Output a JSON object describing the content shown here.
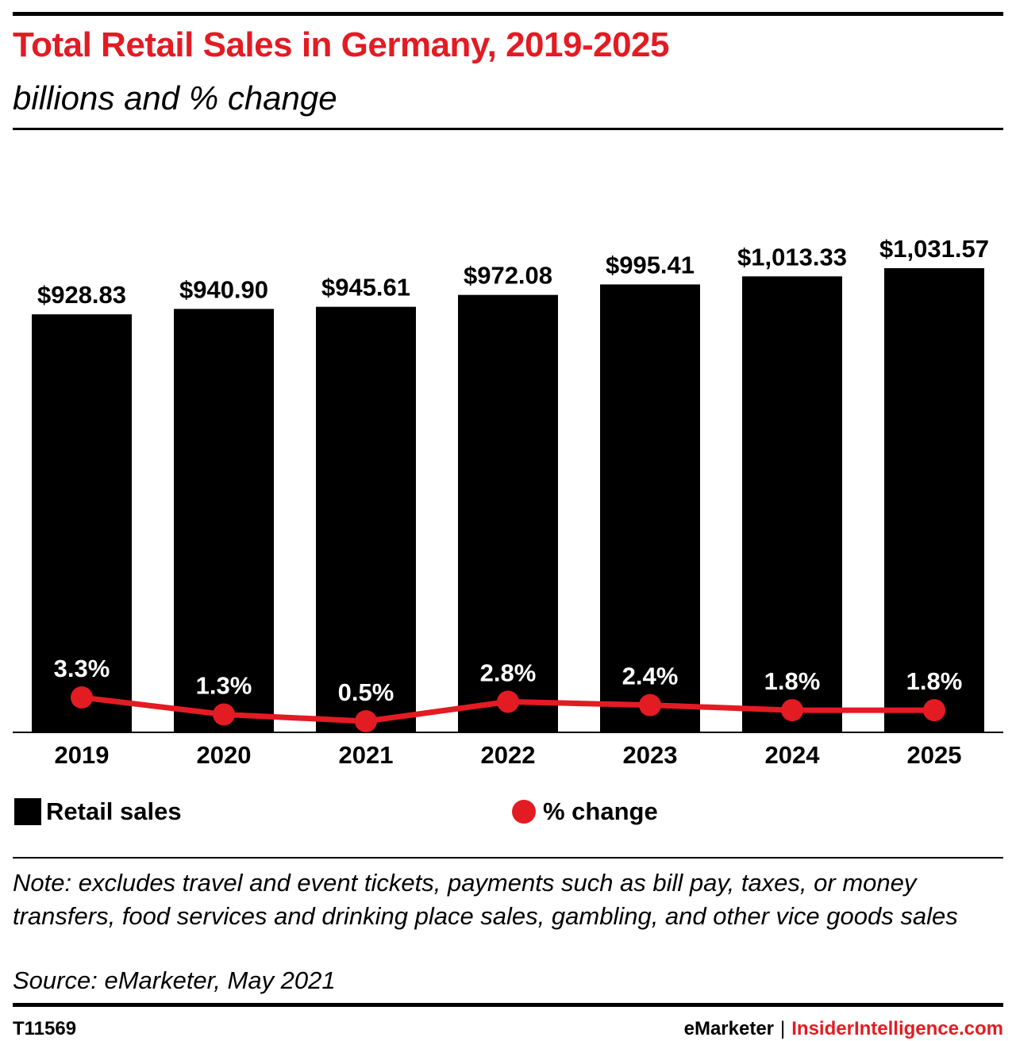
{
  "header": {
    "title": "Total Retail Sales in Germany, 2019-2025",
    "subtitle": "billions and % change"
  },
  "legend": {
    "bars_label": "Retail sales",
    "line_label": "% change"
  },
  "note": "Note: excludes travel and event tickets, payments such as bill pay, taxes, or money transfers, food services and drinking place sales, gambling, and other vice goods sales",
  "source": "Source: eMarketer, May 2021",
  "footer": {
    "chart_id": "T11569",
    "brand_primary": "eMarketer",
    "separator": "|",
    "brand_secondary": "InsiderIntelligence.com"
  },
  "colors": {
    "bar": "#000000",
    "line": "#e31b23",
    "title": "#e31b23"
  },
  "chart_data": {
    "type": "bar",
    "categories": [
      "2019",
      "2020",
      "2021",
      "2022",
      "2023",
      "2024",
      "2025"
    ],
    "series": [
      {
        "name": "Retail sales",
        "type": "bar",
        "values": [
          928.83,
          940.9,
          945.61,
          972.08,
          995.41,
          1013.33,
          1031.57
        ],
        "labels": [
          "$928.83",
          "$940.90",
          "$945.61",
          "$972.08",
          "$995.41",
          "$1,013.33",
          "$1,031.57"
        ]
      },
      {
        "name": "% change",
        "type": "line",
        "values": [
          3.3,
          1.3,
          0.5,
          2.8,
          2.4,
          1.8,
          1.8
        ],
        "labels": [
          "3.3%",
          "1.3%",
          "0.5%",
          "2.8%",
          "2.4%",
          "1.8%",
          "1.8%"
        ]
      }
    ],
    "title": "Total Retail Sales in Germany, 2019-2025",
    "subtitle": "billions and % change",
    "grid": false,
    "legend_position": "bottom"
  }
}
